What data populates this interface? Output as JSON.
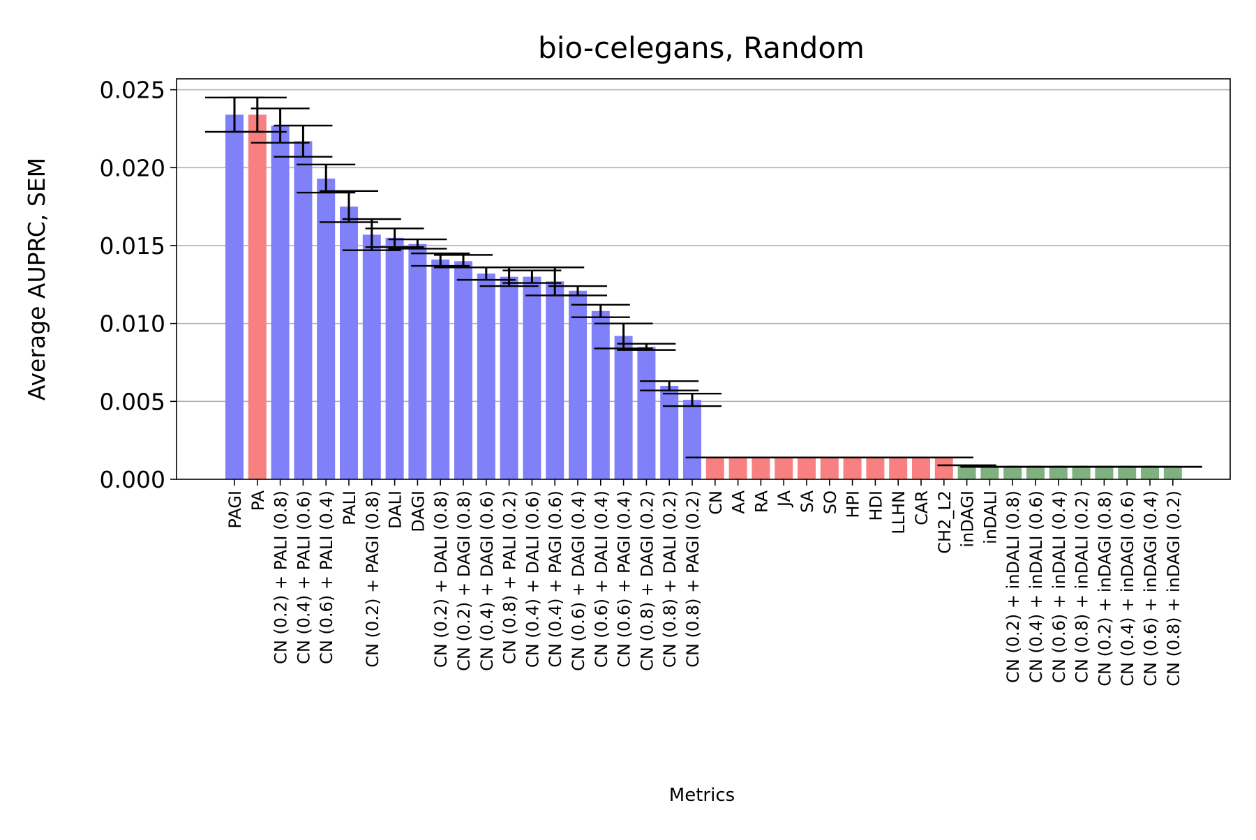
{
  "chart_data": {
    "type": "bar",
    "title": "bio-celegans, Random",
    "xlabel": "Metrics",
    "ylabel": "Average AUPRC, SEM",
    "ylim": [
      0,
      0.0257
    ],
    "yticks": [
      "0.000",
      "0.005",
      "0.010",
      "0.015",
      "0.020",
      "0.025"
    ],
    "ytick_values": [
      0,
      0.005,
      0.01,
      0.015,
      0.02,
      0.025
    ],
    "grid": "y",
    "colors": {
      "blue": "#8080f8",
      "red": "#f88080",
      "green": "#80b080",
      "err": "#000000",
      "grid": "#b0b0b0"
    },
    "categories": [
      "PAGI",
      "PA",
      "CN (0.2) + PALI (0.8)",
      "CN (0.4) + PALI (0.6)",
      "CN (0.6) + PALI (0.4)",
      "PALI",
      "CN (0.2) + PAGI (0.8)",
      "DALI",
      "DAGI",
      "CN (0.2) + DALI (0.8)",
      "CN (0.2) + DAGI (0.8)",
      "CN (0.4) + DAGI (0.6)",
      "CN (0.8) + PALI (0.2)",
      "CN (0.4) + DALI (0.6)",
      "CN (0.4) + PAGI (0.6)",
      "CN (0.6) + DAGI (0.4)",
      "CN (0.6) + DALI (0.4)",
      "CN (0.6) + PAGI (0.4)",
      "CN (0.8) + DAGI (0.2)",
      "CN (0.8) + DALI (0.2)",
      "CN (0.8) + PAGI (0.2)",
      "CN",
      "AA",
      "RA",
      "JA",
      "SA",
      "SO",
      "HPI",
      "HDI",
      "LLHN",
      "CAR",
      "CH2_L2",
      "inDAGI",
      "inDALI",
      "CN (0.2) + inDALI (0.8)",
      "CN (0.4) + inDALI (0.6)",
      "CN (0.6) + inDALI (0.4)",
      "CN (0.8) + inDALI (0.2)",
      "CN (0.2) + inDAGI (0.8)",
      "CN (0.4) + inDAGI (0.6)",
      "CN (0.6) + inDAGI (0.4)",
      "CN (0.8) + inDAGI (0.2)"
    ],
    "values": [
      0.0234,
      0.0234,
      0.0227,
      0.0217,
      0.0193,
      0.0175,
      0.0157,
      0.0155,
      0.0151,
      0.0141,
      0.014,
      0.0132,
      0.013,
      0.013,
      0.0127,
      0.0121,
      0.0108,
      0.0092,
      0.0085,
      0.006,
      0.0051,
      0.0014,
      0.0014,
      0.0014,
      0.0014,
      0.0014,
      0.0014,
      0.0014,
      0.0014,
      0.0014,
      0.0014,
      0.0014,
      0.0009,
      0.0008,
      0.0008,
      0.0008,
      0.0008,
      0.0008,
      0.0008,
      0.0008,
      0.0008,
      0.0008
    ],
    "errors": [
      0.0011,
      0.0011,
      0.0011,
      0.001,
      0.0009,
      0.001,
      0.001,
      0.0006,
      0.0003,
      0.0004,
      0.0004,
      0.0004,
      0.0006,
      0.0004,
      0.0009,
      0.0003,
      0.0004,
      0.0008,
      0.0002,
      0.0003,
      0.0004,
      0,
      0,
      0,
      0,
      0,
      0,
      0,
      0,
      0,
      0,
      0,
      0,
      0,
      0,
      0,
      0,
      0,
      0,
      0,
      0,
      0
    ],
    "bar_colors": [
      "blue",
      "red",
      "blue",
      "blue",
      "blue",
      "blue",
      "blue",
      "blue",
      "blue",
      "blue",
      "blue",
      "blue",
      "blue",
      "blue",
      "blue",
      "blue",
      "blue",
      "blue",
      "blue",
      "blue",
      "blue",
      "red",
      "red",
      "red",
      "red",
      "red",
      "red",
      "red",
      "red",
      "red",
      "red",
      "red",
      "green",
      "green",
      "green",
      "green",
      "green",
      "green",
      "green",
      "green",
      "green",
      "green"
    ]
  }
}
